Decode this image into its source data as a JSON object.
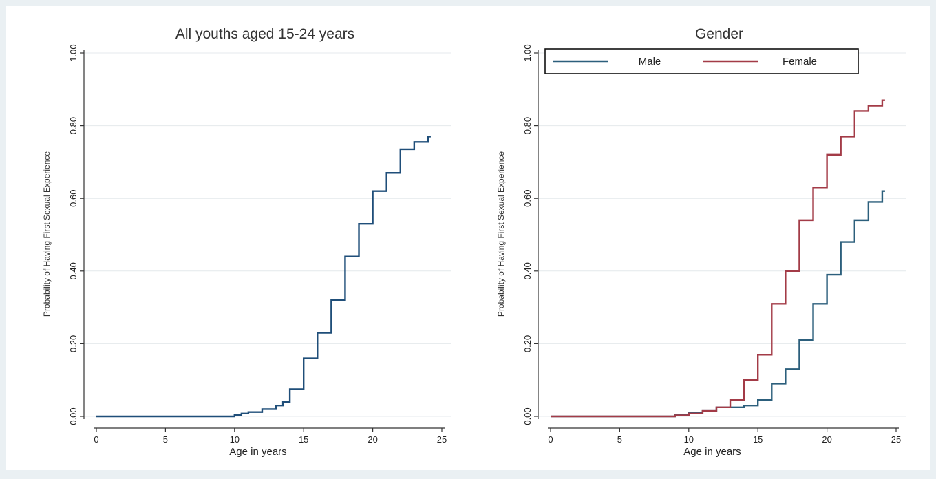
{
  "chart_data": [
    {
      "type": "line",
      "step": true,
      "title": "All youths aged 15-24 years",
      "xlabel": "Age in years",
      "ylabel": "Probability of Having First Sexual Experience",
      "xlim": [
        0,
        25
      ],
      "ylim": [
        0,
        1
      ],
      "xticks": [
        0,
        5,
        10,
        15,
        20,
        25
      ],
      "yticks": [
        0,
        0.2,
        0.4,
        0.6,
        0.8,
        1
      ],
      "yticklabels": [
        "0.00",
        "0.20",
        "0.40",
        "0.60",
        "0.80",
        "1.00"
      ],
      "grid": true,
      "legend": "none",
      "series": [
        {
          "color": "#1f4e79",
          "x": [
            0,
            10,
            10.5,
            11,
            12,
            13,
            13.5,
            14,
            15,
            16,
            17,
            18,
            19,
            20,
            21,
            22,
            23,
            24
          ],
          "y": [
            0,
            0.004,
            0.008,
            0.012,
            0.02,
            0.03,
            0.04,
            0.075,
            0.16,
            0.23,
            0.32,
            0.44,
            0.53,
            0.62,
            0.67,
            0.735,
            0.755,
            0.77
          ]
        }
      ]
    },
    {
      "type": "line",
      "step": true,
      "title": "Gender",
      "xlabel": "Age in years",
      "ylabel": "Probability of Having First Sexual Experience",
      "xlim": [
        0,
        25
      ],
      "ylim": [
        0,
        1
      ],
      "xticks": [
        0,
        5,
        10,
        15,
        20,
        25
      ],
      "yticks": [
        0,
        0.2,
        0.4,
        0.6,
        0.8,
        1
      ],
      "yticklabels": [
        "0.00",
        "0.20",
        "0.40",
        "0.60",
        "0.80",
        "1.00"
      ],
      "grid": true,
      "legend": "top-left",
      "series": [
        {
          "name": "Male",
          "color": "#2c5f7c",
          "x": [
            0,
            9,
            10,
            11,
            12,
            13,
            14,
            15,
            16,
            17,
            18,
            19,
            20,
            21,
            22,
            23,
            24
          ],
          "y": [
            0,
            0.005,
            0.01,
            0.015,
            0.025,
            0.025,
            0.03,
            0.045,
            0.09,
            0.13,
            0.21,
            0.31,
            0.39,
            0.48,
            0.54,
            0.59,
            0.62
          ]
        },
        {
          "name": "Female",
          "color": "#a33b47",
          "x": [
            0,
            9,
            10,
            11,
            12,
            13,
            14,
            15,
            16,
            17,
            18,
            19,
            20,
            21,
            22,
            23,
            24
          ],
          "y": [
            0,
            0.003,
            0.008,
            0.015,
            0.025,
            0.045,
            0.1,
            0.17,
            0.31,
            0.4,
            0.54,
            0.63,
            0.72,
            0.77,
            0.84,
            0.855,
            0.87
          ]
        }
      ]
    }
  ]
}
